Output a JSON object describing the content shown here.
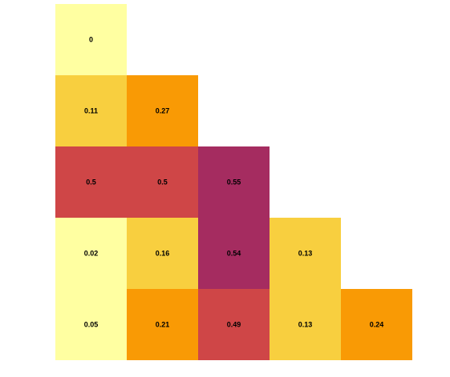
{
  "chart_data": {
    "type": "heatmap",
    "layout": "lower-triangular",
    "grid": false,
    "legend": "none",
    "rows": 5,
    "cols": 5,
    "cells": [
      {
        "row": 0,
        "col": 0,
        "value": 0,
        "label": "0"
      },
      {
        "row": 1,
        "col": 0,
        "value": 0.11,
        "label": "0.11"
      },
      {
        "row": 1,
        "col": 1,
        "value": 0.27,
        "label": "0.27"
      },
      {
        "row": 2,
        "col": 0,
        "value": 0.5,
        "label": "0.5"
      },
      {
        "row": 2,
        "col": 1,
        "value": 0.5,
        "label": "0.5"
      },
      {
        "row": 2,
        "col": 2,
        "value": 0.55,
        "label": "0.55"
      },
      {
        "row": 3,
        "col": 0,
        "value": 0.02,
        "label": "0.02"
      },
      {
        "row": 3,
        "col": 1,
        "value": 0.16,
        "label": "0.16"
      },
      {
        "row": 3,
        "col": 2,
        "value": 0.54,
        "label": "0.54"
      },
      {
        "row": 3,
        "col": 3,
        "value": 0.13,
        "label": "0.13"
      },
      {
        "row": 4,
        "col": 0,
        "value": 0.05,
        "label": "0.05"
      },
      {
        "row": 4,
        "col": 1,
        "value": 0.21,
        "label": "0.21"
      },
      {
        "row": 4,
        "col": 2,
        "value": 0.49,
        "label": "0.49"
      },
      {
        "row": 4,
        "col": 3,
        "value": 0.13,
        "label": "0.13"
      },
      {
        "row": 4,
        "col": 4,
        "value": 0.24,
        "label": "0.24"
      }
    ],
    "color_scale": [
      {
        "max": 0.05,
        "color": "#FFFFA1"
      },
      {
        "max": 0.2,
        "color": "#F8CF3F"
      },
      {
        "max": 0.3,
        "color": "#F99A05"
      },
      {
        "max": 0.52,
        "color": "#CF4647"
      },
      {
        "max": 1.0,
        "color": "#A52C60"
      }
    ]
  }
}
